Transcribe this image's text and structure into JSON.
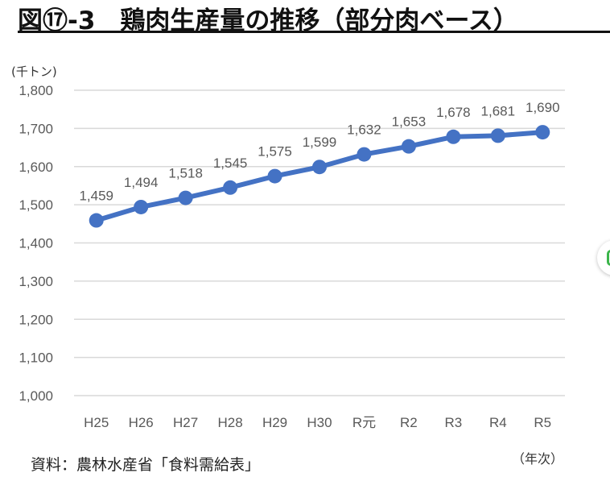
{
  "chart_data": {
    "type": "line",
    "title": "図⑰-3　鶏肉生産量の推移（部分肉ベース）",
    "ylabel": "(千トン)",
    "xlabel": "（年次）",
    "categories": [
      "H25",
      "H26",
      "H27",
      "H28",
      "H29",
      "H30",
      "R元",
      "R2",
      "R3",
      "R4",
      "R5"
    ],
    "values": [
      1459,
      1494,
      1518,
      1545,
      1575,
      1599,
      1632,
      1653,
      1678,
      1681,
      1690
    ],
    "data_labels": [
      "1,459",
      "1,494",
      "1,518",
      "1,545",
      "1,575",
      "1,599",
      "1,632",
      "1,653",
      "1,678",
      "1,681",
      "1,690"
    ],
    "yticks": [
      "1,000",
      "1,100",
      "1,200",
      "1,300",
      "1,400",
      "1,500",
      "1,600",
      "1,700",
      "1,800"
    ],
    "ylim": [
      1000,
      1800
    ],
    "grid": true,
    "color": "#4472c4"
  },
  "source": "資料：農林水産省「食料需給表」"
}
